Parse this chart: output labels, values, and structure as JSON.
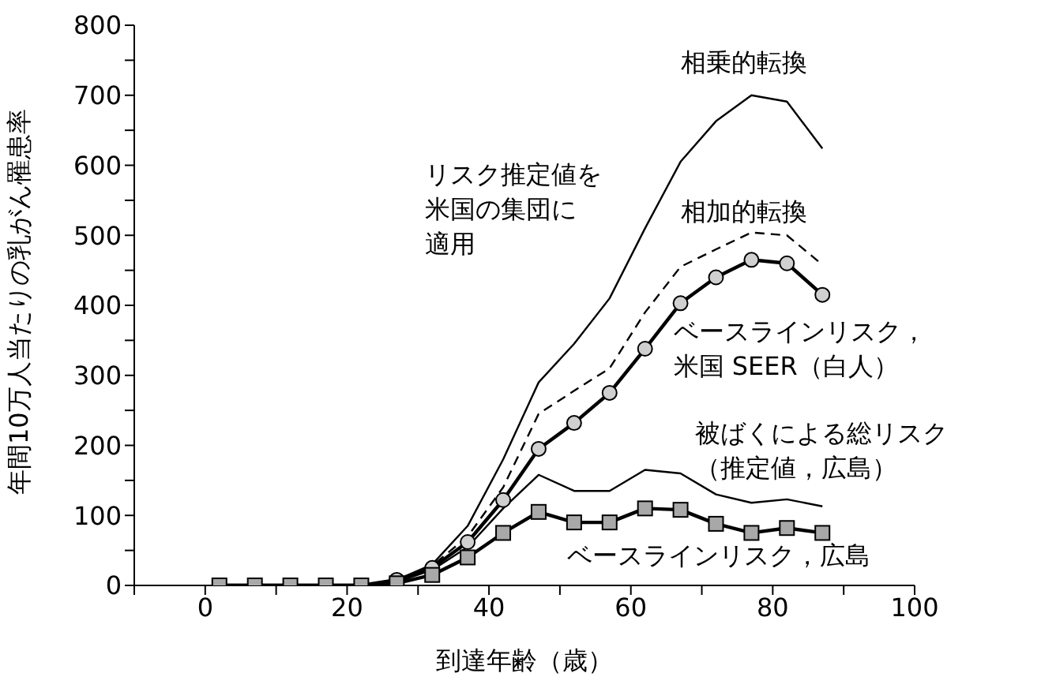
{
  "chart_data": {
    "type": "line",
    "xlabel": "到達年齢（歳）",
    "ylabel": "年間10万人当たりの乳がん罹患率",
    "x": [
      2,
      7,
      12,
      17,
      22,
      27,
      32,
      37,
      42,
      47,
      52,
      57,
      62,
      67,
      72,
      77,
      82,
      87
    ],
    "xlim": [
      -10,
      100
    ],
    "xticks": [
      {
        "value": -10,
        "label": null
      },
      0,
      {
        "value": 10,
        "label": null
      },
      20,
      {
        "value": 30,
        "label": null
      },
      40,
      {
        "value": 50,
        "label": null
      },
      60,
      {
        "value": 70,
        "label": null
      },
      80,
      {
        "value": 90,
        "label": null
      },
      100
    ],
    "ylim": [
      0,
      800
    ],
    "yticks": [
      0,
      {
        "value": 50,
        "label": null
      },
      100,
      {
        "value": 150,
        "label": null
      },
      200,
      {
        "value": 250,
        "label": null
      },
      300,
      {
        "value": 350,
        "label": null
      },
      400,
      {
        "value": 450,
        "label": null
      },
      500,
      {
        "value": 550,
        "label": null
      },
      600,
      {
        "value": 650,
        "label": null
      },
      700,
      {
        "value": 750,
        "label": null
      },
      800
    ],
    "grid": false,
    "legend": false,
    "series": [
      {
        "name": "相乗的転換",
        "color": "#000000",
        "marker": "none",
        "line_style": "solid",
        "values": [
          0,
          0,
          0,
          0,
          0,
          8,
          30,
          85,
          180,
          290,
          345,
          410,
          510,
          605,
          663,
          700,
          691,
          624
        ]
      },
      {
        "name": "相加的転換",
        "color": "#000000",
        "marker": "none",
        "line_style": "dashed",
        "values": [
          0,
          0,
          0,
          0,
          0,
          8,
          28,
          70,
          140,
          245,
          278,
          310,
          390,
          455,
          480,
          504,
          500,
          458
        ]
      },
      {
        "name": "ベースラインリスク，米国 SEER（白人）",
        "color": "#000000",
        "marker": "circle",
        "line_style": "solid",
        "values": [
          0,
          0,
          0,
          0,
          0,
          8,
          25,
          62,
          122,
          195,
          232,
          275,
          338,
          403,
          440,
          465,
          460,
          415
        ]
      },
      {
        "name": "被ばくによる総リスク（推定値，広島）",
        "color": "#000000",
        "marker": "none",
        "line_style": "solid",
        "values": [
          0,
          0,
          0,
          0,
          0,
          5,
          22,
          55,
          110,
          158,
          135,
          135,
          165,
          160,
          130,
          118,
          123,
          113
        ]
      },
      {
        "name": "ベースラインリスク，広島",
        "color": "#000000",
        "marker": "square",
        "line_style": "solid",
        "values": [
          0,
          0,
          0,
          0,
          0,
          3,
          15,
          40,
          75,
          105,
          90,
          90,
          110,
          108,
          88,
          75,
          82,
          75
        ]
      }
    ],
    "annotations": [
      "リスク推定値を米国の集団に適用"
    ]
  }
}
